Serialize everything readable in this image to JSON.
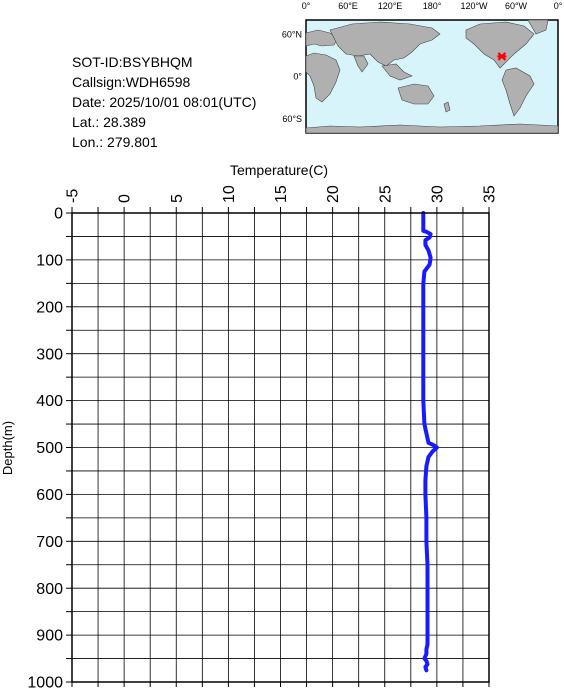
{
  "meta": {
    "sot_id": "SOT-ID:BSYBHQM",
    "callsign": "Callsign:WDH6598",
    "date": "Date:  2025/10/01 08:01(UTC)",
    "lat": "Lat.:  28.389",
    "lon": "Lon.:  279.801"
  },
  "map": {
    "top_labels": [
      "0°",
      "60°E",
      "120°E",
      "180°",
      "120°W",
      "60°W",
      "0°"
    ],
    "left_labels": [
      "60°N",
      "0°",
      "60°S"
    ],
    "ocean_color": "#d8f4fb",
    "land_color": "#b0b0b0",
    "marker_color": "#ff0000",
    "marker_lon": 279.801,
    "marker_lat": 28.389
  },
  "chart_data": {
    "type": "line",
    "xlabel": "Temperature(C)",
    "ylabel": "Depth(m)",
    "xlim": [
      -5,
      35
    ],
    "ylim": [
      0,
      1000
    ],
    "x_ticks": [
      "-5",
      "0",
      "5",
      "10",
      "15",
      "20",
      "25",
      "30",
      "35"
    ],
    "y_ticks": [
      "0",
      "100",
      "200",
      "300",
      "400",
      "500",
      "600",
      "700",
      "800",
      "900",
      "1000"
    ],
    "grid": true,
    "line_color": "#1a1aff",
    "series": [
      {
        "x": [
          28.7,
          28.7,
          28.7,
          29.0,
          29.4,
          29.3,
          28.9,
          28.9,
          29.2,
          29.4,
          29.3,
          28.8,
          28.7,
          28.7,
          28.7,
          28.7,
          28.7,
          28.7,
          28.8,
          29.2,
          29.7,
          30.0,
          29.6,
          29.2,
          29.0,
          28.9,
          28.9,
          29.0,
          29.0,
          29.1,
          29.1,
          29.1,
          29.1,
          29.1,
          29.1,
          29.0,
          29.0,
          28.8,
          29.0,
          29.1,
          28.9,
          29.0
        ],
        "y": [
          0,
          20,
          38,
          40,
          45,
          52,
          58,
          68,
          80,
          95,
          110,
          125,
          150,
          200,
          250,
          300,
          350,
          400,
          450,
          490,
          495,
          500,
          508,
          520,
          540,
          570,
          600,
          650,
          700,
          750,
          800,
          850,
          880,
          900,
          920,
          930,
          940,
          950,
          955,
          962,
          968,
          975
        ]
      }
    ]
  }
}
